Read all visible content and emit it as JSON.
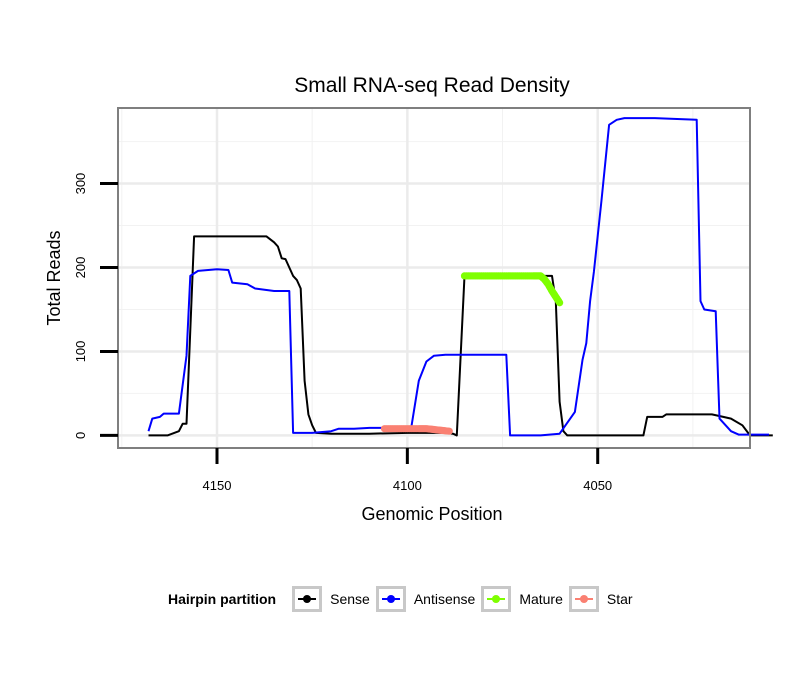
{
  "chart_data": {
    "type": "line",
    "title": "Small RNA-seq Read Density",
    "xlabel": "Genomic Position",
    "ylabel": "Total Reads",
    "xlim": [
      4176,
      4010
    ],
    "ylim": [
      -15,
      390
    ],
    "x_reversed": true,
    "xticks": [
      4150,
      4100,
      4050
    ],
    "yticks": [
      0,
      100,
      200,
      300
    ],
    "grid": true,
    "legend_position": "bottom",
    "legend_title": "Hairpin partition",
    "series": [
      {
        "name": "Sense",
        "color": "#000000",
        "markers": false,
        "points": [
          [
            4168,
            0
          ],
          [
            4163,
            0
          ],
          [
            4160,
            5
          ],
          [
            4159,
            14
          ],
          [
            4158,
            14
          ],
          [
            4156,
            237
          ],
          [
            4140,
            237
          ],
          [
            4137,
            237
          ],
          [
            4135,
            230
          ],
          [
            4134,
            225
          ],
          [
            4133,
            211
          ],
          [
            4132,
            210
          ],
          [
            4130,
            190
          ],
          [
            4129,
            185
          ],
          [
            4128,
            175
          ],
          [
            4127,
            65
          ],
          [
            4126,
            25
          ],
          [
            4125,
            12
          ],
          [
            4124,
            3
          ],
          [
            4120,
            2
          ],
          [
            4115,
            2
          ],
          [
            4110,
            2
          ],
          [
            4100,
            3
          ],
          [
            4095,
            3
          ],
          [
            4090,
            3
          ],
          [
            4088,
            2
          ],
          [
            4087,
            0
          ],
          [
            4085,
            190
          ],
          [
            4062,
            190
          ],
          [
            4061,
            160
          ],
          [
            4060,
            40
          ],
          [
            4059,
            5
          ],
          [
            4058,
            0
          ],
          [
            4048,
            0
          ],
          [
            4038,
            0
          ],
          [
            4037,
            22
          ],
          [
            4033,
            22
          ],
          [
            4032,
            25
          ],
          [
            4020,
            25
          ],
          [
            4017,
            22
          ],
          [
            4015,
            20
          ],
          [
            4012,
            12
          ],
          [
            4010,
            0
          ],
          [
            4004,
            0
          ]
        ]
      },
      {
        "name": "Antisense",
        "color": "#0000ff",
        "markers": false,
        "points": [
          [
            4168,
            5
          ],
          [
            4167,
            20
          ],
          [
            4165,
            22
          ],
          [
            4164,
            26
          ],
          [
            4160,
            26
          ],
          [
            4158,
            95
          ],
          [
            4157,
            190
          ],
          [
            4155,
            196
          ],
          [
            4150,
            198
          ],
          [
            4147,
            197
          ],
          [
            4146,
            182
          ],
          [
            4142,
            180
          ],
          [
            4140,
            175
          ],
          [
            4135,
            172
          ],
          [
            4133,
            172
          ],
          [
            4131,
            172
          ],
          [
            4130,
            3
          ],
          [
            4125,
            3
          ],
          [
            4120,
            5
          ],
          [
            4118,
            8
          ],
          [
            4115,
            8
          ],
          [
            4114,
            8
          ],
          [
            4110,
            9
          ],
          [
            4102,
            9
          ],
          [
            4099,
            9
          ],
          [
            4097,
            65
          ],
          [
            4095,
            88
          ],
          [
            4093,
            95
          ],
          [
            4090,
            96
          ],
          [
            4086,
            96
          ],
          [
            4075,
            96
          ],
          [
            4074,
            96
          ],
          [
            4073,
            0
          ],
          [
            4065,
            0
          ],
          [
            4060,
            2
          ],
          [
            4056,
            28
          ],
          [
            4054,
            90
          ],
          [
            4053,
            110
          ],
          [
            4052,
            160
          ],
          [
            4051,
            195
          ],
          [
            4049,
            280
          ],
          [
            4047,
            370
          ],
          [
            4045,
            376
          ],
          [
            4043,
            378
          ],
          [
            4035,
            378
          ],
          [
            4030,
            377
          ],
          [
            4024,
            376
          ],
          [
            4023,
            160
          ],
          [
            4022,
            150
          ],
          [
            4019,
            148
          ],
          [
            4018,
            20
          ],
          [
            4015,
            5
          ],
          [
            4013,
            1
          ],
          [
            4005,
            1
          ]
        ]
      },
      {
        "name": "Mature",
        "color": "#7fff00",
        "markers": true,
        "points": [
          [
            4085,
            190
          ],
          [
            4082,
            190
          ],
          [
            4079,
            190
          ],
          [
            4076,
            190
          ],
          [
            4073,
            190
          ],
          [
            4070,
            190
          ],
          [
            4067,
            190
          ],
          [
            4065,
            190
          ],
          [
            4064,
            186
          ],
          [
            4063,
            180
          ],
          [
            4062,
            172
          ],
          [
            4061,
            165
          ],
          [
            4060,
            158
          ]
        ]
      },
      {
        "name": "Star",
        "color": "#fa8072",
        "markers": true,
        "points": [
          [
            4106,
            8
          ],
          [
            4103,
            8
          ],
          [
            4100,
            8
          ],
          [
            4097,
            8
          ],
          [
            4095,
            8
          ],
          [
            4093,
            7
          ],
          [
            4091,
            6
          ],
          [
            4089,
            5
          ]
        ]
      }
    ]
  }
}
